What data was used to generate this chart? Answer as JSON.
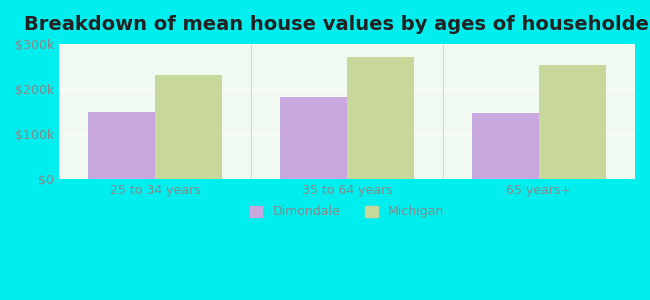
{
  "title": "Breakdown of mean house values by ages of householders",
  "categories": [
    "25 to 34 years",
    "35 to 64 years",
    "65 years+"
  ],
  "dimondale_values": [
    150000,
    183000,
    148000
  ],
  "michigan_values": [
    232000,
    272000,
    253000
  ],
  "ylim": [
    0,
    300000
  ],
  "yticks": [
    0,
    100000,
    200000,
    300000
  ],
  "ytick_labels": [
    "$0",
    "$100k",
    "$200k",
    "$300k"
  ],
  "dimondale_color": "#c9a8e0",
  "michigan_color": "#c8d89a",
  "background_color": "#00eeee",
  "plot_bg_start": "#e8f5e8",
  "plot_bg_end": "#f5fff5",
  "bar_width": 0.35,
  "legend_labels": [
    "Dimondale",
    "Michigan"
  ],
  "title_fontsize": 14,
  "tick_fontsize": 9
}
